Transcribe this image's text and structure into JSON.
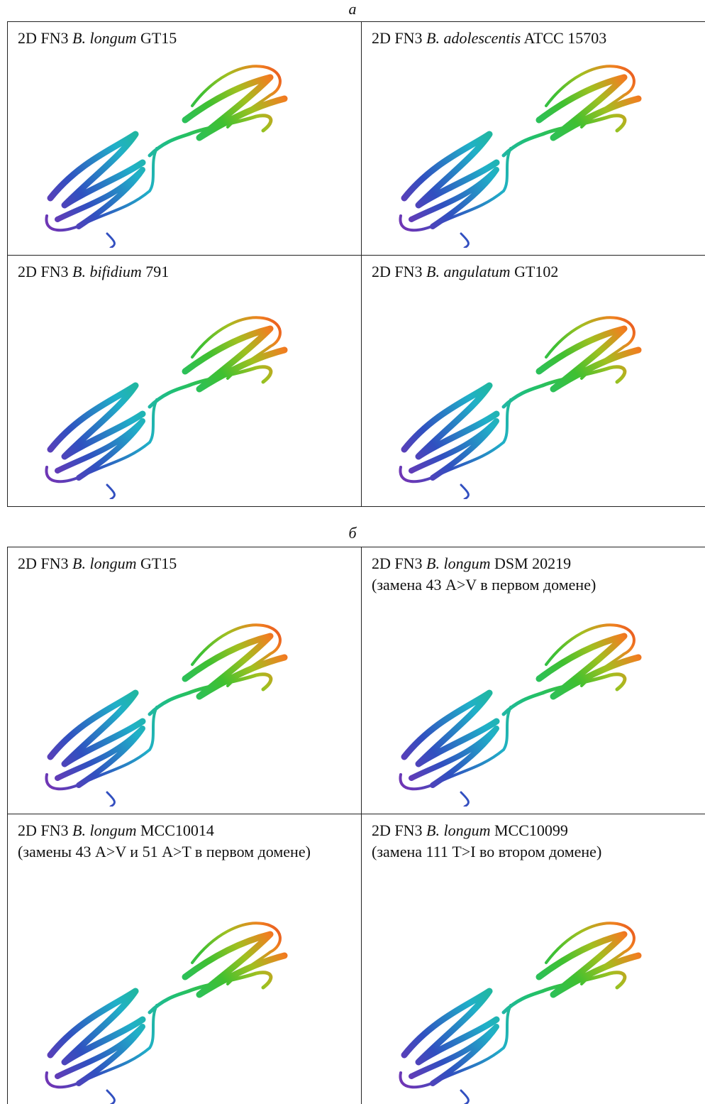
{
  "panels": [
    {
      "label": "а",
      "cells": [
        {
          "prefix": "2D FN3 ",
          "species": "B. longum",
          "strain": " GT15"
        },
        {
          "prefix": "2D FN3 ",
          "species": "B. adolescentis",
          "strain": " ATCC 15703"
        },
        {
          "prefix": "2D FN3 ",
          "species": "B. bifidium",
          "strain": " 791"
        },
        {
          "prefix": "2D FN3 ",
          "species": "B. angulatum",
          "strain": " GT102"
        }
      ]
    },
    {
      "label": "б",
      "cells": [
        {
          "prefix": "2D FN3 ",
          "species": "B. longum",
          "strain": " GT15"
        },
        {
          "prefix": "2D FN3 ",
          "species": "B. longum",
          "strain": " DSM 20219",
          "note": "(замена 43 A>V в первом домене)"
        },
        {
          "prefix": "2D FN3 ",
          "species": "B. longum",
          "strain": " MCC10014",
          "note": "(замены 43 A>V и 51 A>T в первом домене)"
        },
        {
          "prefix": "2D FN3 ",
          "species": "B. longum",
          "strain": " MCC10099",
          "note": "(замена 111 T>I во втором домене)"
        }
      ]
    }
  ]
}
